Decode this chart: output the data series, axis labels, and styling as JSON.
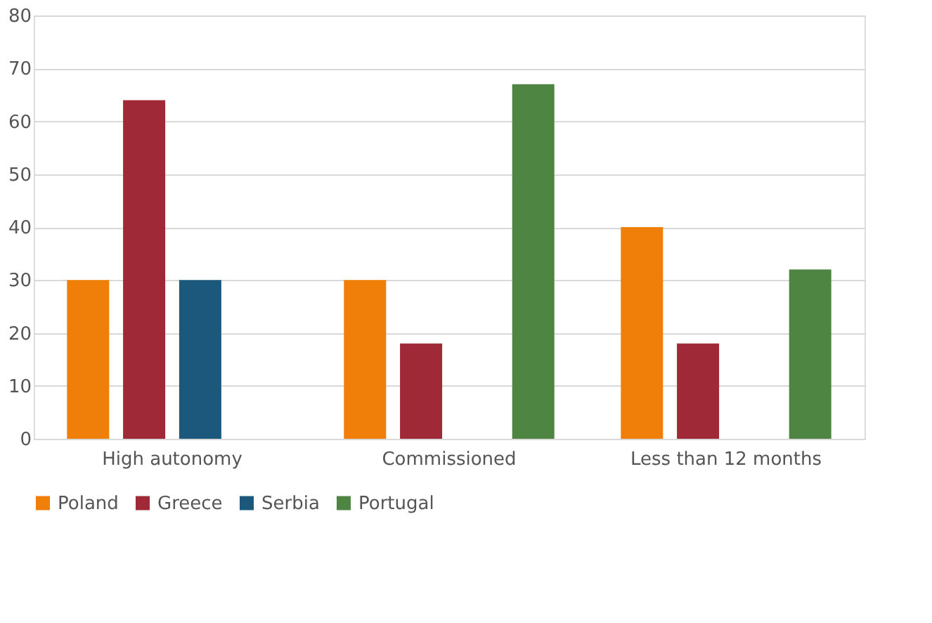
{
  "chart_data": {
    "type": "bar",
    "categories": [
      "High autonomy",
      "Commissioned",
      "Less than 12 months"
    ],
    "series": [
      {
        "name": "Poland",
        "color": "#f07f09",
        "values": [
          30,
          30,
          40
        ]
      },
      {
        "name": "Greece",
        "color": "#9f2936",
        "values": [
          64,
          18,
          18
        ]
      },
      {
        "name": "Serbia",
        "color": "#1b587c",
        "values": [
          30,
          null,
          null
        ]
      },
      {
        "name": "Portugal",
        "color": "#4e8542",
        "values": [
          null,
          67,
          32
        ]
      }
    ],
    "ylim": [
      0,
      80
    ],
    "yticks": [
      0,
      10,
      20,
      30,
      40,
      50,
      60,
      70,
      80
    ],
    "grid": "y",
    "legend": "bottom"
  }
}
